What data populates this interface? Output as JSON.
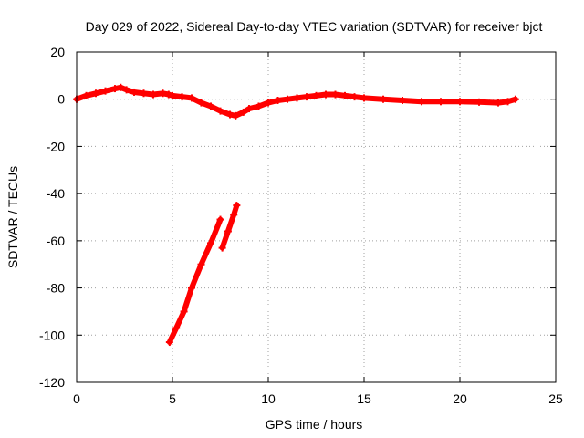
{
  "chart_data": {
    "type": "scatter",
    "title": "Day 029 of 2022, Sidereal Day-to-day VTEC variation (SDTVAR) for receiver bjct",
    "xlabel": "GPS time / hours",
    "ylabel": "SDTVAR / TECUs",
    "xlim": [
      0,
      25
    ],
    "ylim": [
      -120,
      20
    ],
    "xticks": [
      "0",
      "5",
      "10",
      "15",
      "20",
      "25"
    ],
    "yticks": [
      "20",
      "0",
      "-20",
      "-40",
      "-60",
      "-80",
      "-100",
      "-120"
    ],
    "grid": true,
    "legend": "none",
    "series": [
      {
        "color": "#ff0000",
        "marker": "plus",
        "segments": [
          [
            [
              0,
              0
            ],
            [
              0.5,
              1.5
            ],
            [
              1,
              2.5
            ],
            [
              1.5,
              3.5
            ],
            [
              2,
              4.5
            ],
            [
              2.3,
              5
            ],
            [
              2.6,
              4
            ],
            [
              3,
              3
            ],
            [
              3.5,
              2.5
            ],
            [
              4,
              2
            ],
            [
              4.5,
              2.5
            ],
            [
              4.8,
              2
            ],
            [
              5,
              1.5
            ],
            [
              5.5,
              1
            ],
            [
              6,
              0.5
            ],
            [
              6.5,
              -1.5
            ],
            [
              7,
              -3
            ],
            [
              7.5,
              -5
            ],
            [
              8,
              -6.5
            ],
            [
              8.3,
              -7
            ],
            [
              8.7,
              -5.5
            ],
            [
              9,
              -4
            ],
            [
              9.5,
              -3
            ],
            [
              10,
              -1.5
            ],
            [
              10.5,
              -0.5
            ],
            [
              11,
              0
            ],
            [
              11.5,
              0.5
            ],
            [
              12,
              1
            ],
            [
              12.5,
              1.5
            ],
            [
              13,
              2
            ],
            [
              13.5,
              2
            ],
            [
              14,
              1.5
            ],
            [
              14.5,
              1
            ],
            [
              15,
              0.5
            ],
            [
              16,
              0
            ],
            [
              17,
              -0.5
            ],
            [
              18,
              -1
            ],
            [
              19,
              -1
            ],
            [
              20,
              -1
            ],
            [
              21,
              -1.2
            ],
            [
              22,
              -1.5
            ],
            [
              22.5,
              -1
            ],
            [
              22.9,
              0
            ]
          ],
          [
            [
              4.85,
              -103
            ],
            [
              5.2,
              -97
            ],
            [
              5.6,
              -90
            ],
            [
              6,
              -80
            ],
            [
              6.5,
              -70
            ],
            [
              7,
              -61
            ],
            [
              7.5,
              -51
            ]
          ],
          [
            [
              7.6,
              -63
            ],
            [
              7.9,
              -56
            ],
            [
              8.2,
              -49
            ],
            [
              8.35,
              -45
            ]
          ]
        ]
      }
    ]
  }
}
